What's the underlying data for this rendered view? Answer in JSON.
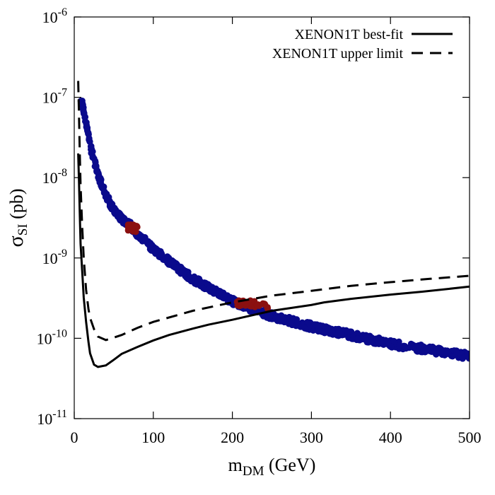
{
  "chart_data": {
    "type": "scatter",
    "title": "",
    "xlabel": {
      "main": "m",
      "sub": "DM",
      "unit": " (GeV)"
    },
    "ylabel": {
      "main": "σ",
      "sub": "SI",
      "unit": " (pb)"
    },
    "xlim": [
      0,
      500
    ],
    "ylim": [
      1e-11,
      1e-06
    ],
    "yscale": "log",
    "x_ticks": [
      "0",
      "100",
      "200",
      "300",
      "400",
      "500"
    ],
    "y_ticks": [
      {
        "base": "10",
        "exp": "-11"
      },
      {
        "base": "10",
        "exp": "-10"
      },
      {
        "base": "10",
        "exp": "-9"
      },
      {
        "base": "10",
        "exp": "-8"
      },
      {
        "base": "10",
        "exp": "-7"
      },
      {
        "base": "10",
        "exp": "-6"
      }
    ],
    "grid": false,
    "legend_position": "top-right",
    "lines": [
      {
        "name": "XENON1T best-fit",
        "style": "solid",
        "color": "#000000",
        "x": [
          5,
          6,
          7,
          8,
          10,
          12,
          15,
          18,
          20,
          25,
          30,
          40,
          50,
          60,
          80,
          100,
          120,
          150,
          170,
          200,
          250,
          300,
          316,
          350,
          400,
          440,
          500
        ],
        "y": [
          2e-08,
          9e-09,
          3.5e-09,
          1.5e-09,
          7e-10,
          3.2e-10,
          1.6e-10,
          9e-11,
          6.5e-11,
          4.7e-11,
          4.4e-11,
          4.6e-11,
          5.4e-11,
          6.4e-11,
          7.8e-11,
          9.4e-11,
          1.1e-10,
          1.32e-10,
          1.48e-10,
          1.7e-10,
          2.2e-10,
          2.6e-10,
          2.8e-10,
          3.1e-10,
          3.5e-10,
          3.8e-10,
          4.4e-10
        ]
      },
      {
        "name": "XENON1T upper limit",
        "style": "dashed",
        "color": "#000000",
        "x": [
          5,
          6,
          7,
          8,
          10,
          12,
          15,
          18,
          20,
          25,
          30,
          40,
          50,
          60,
          80,
          100,
          150,
          200,
          250,
          300,
          350,
          400,
          450,
          500
        ],
        "y": [
          1.6e-07,
          6e-08,
          2e-08,
          8e-09,
          2.5e-09,
          1e-09,
          4e-10,
          2.3e-10,
          1.8e-10,
          1.3e-10,
          1.05e-10,
          9.5e-11,
          1.02e-10,
          1.1e-10,
          1.35e-10,
          1.6e-10,
          2.2e-10,
          2.8e-10,
          3.4e-10,
          3.9e-10,
          4.5e-10,
          5e-10,
          5.5e-10,
          6e-10
        ]
      }
    ],
    "scatter_series": [
      {
        "color": "#0a0a8c",
        "band": {
          "x": [
            10,
            20,
            30,
            40,
            50,
            60,
            70,
            80,
            100,
            120,
            150,
            200,
            250,
            300,
            350,
            400,
            450,
            500
          ],
          "y": [
            9e-08,
            2.5e-08,
            1.1e-08,
            6e-09,
            4e-09,
            3.1e-09,
            2.6e-09,
            2e-09,
            1.3e-09,
            9e-10,
            5.5e-10,
            2.9e-10,
            1.9e-10,
            1.4e-10,
            1.1e-10,
            8.5e-11,
            7.2e-11,
            6e-11
          ]
        },
        "x_range": [
          8,
          500
        ]
      },
      {
        "color": "#8b1010",
        "band": {
          "x": [
            68,
            72,
            76,
            80
          ],
          "y": [
            2.4e-09,
            2.4e-09,
            2.35e-09,
            2.3e-09
          ]
        },
        "x_range": [
          68,
          80
        ]
      },
      {
        "color": "#8b1010",
        "band": {
          "x": [
            205,
            215,
            225,
            235,
            245
          ],
          "y": [
            2.75e-10,
            2.7e-10,
            2.65e-10,
            2.6e-10,
            2.55e-10
          ]
        },
        "x_range": [
          205,
          245
        ]
      }
    ]
  }
}
